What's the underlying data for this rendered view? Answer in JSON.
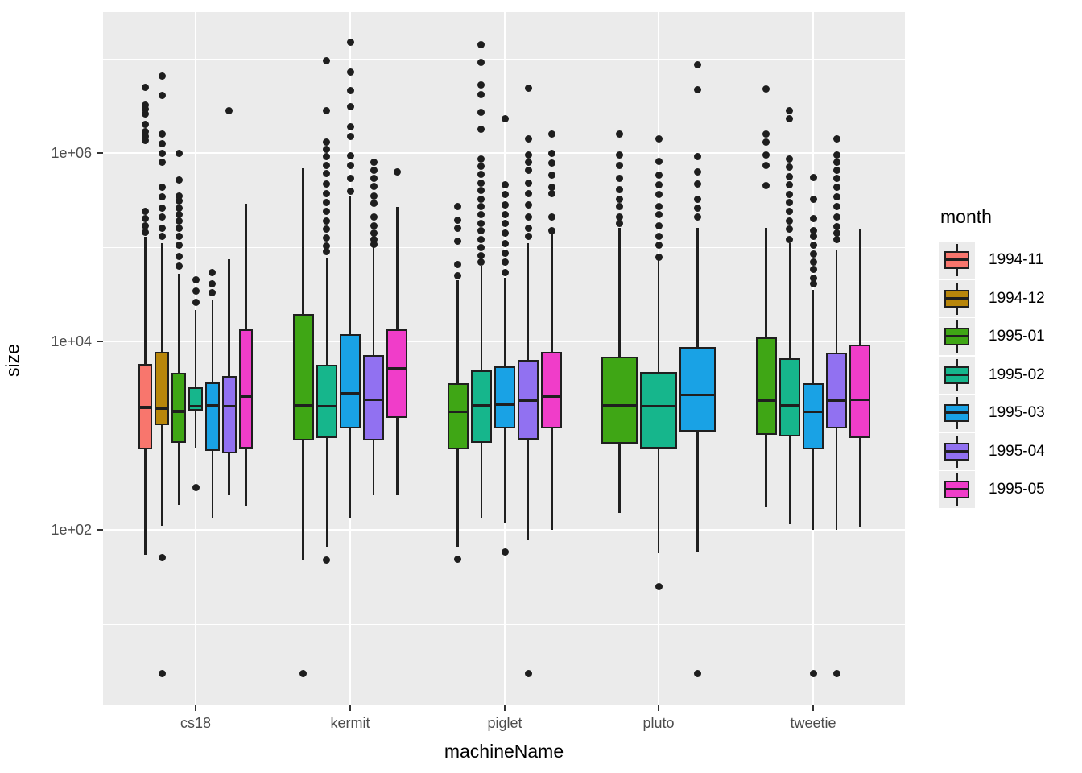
{
  "figure": {
    "x_title": "machineName",
    "y_title": "size",
    "background": "#ffffff",
    "panel_background": "#EBEBEB",
    "gridline_color": "#ffffff",
    "box_outline_color": "#1F1F1F",
    "outlier_color": "#1E1E1E"
  },
  "legend": {
    "title": "month",
    "entries": [
      {
        "label": "1994-11",
        "color": "#F8766D"
      },
      {
        "label": "1994-12",
        "color": "#B8860B"
      },
      {
        "label": "1995-01",
        "color": "#3FA615"
      },
      {
        "label": "1995-02",
        "color": "#16B68C"
      },
      {
        "label": "1995-03",
        "color": "#19A2E5"
      },
      {
        "label": "1995-04",
        "color": "#9171F1"
      },
      {
        "label": "1995-05",
        "color": "#F03DC9"
      }
    ]
  },
  "axes": {
    "y": {
      "label": "size",
      "scale": "log10",
      "major_ticks": [
        {
          "label": "1e+06",
          "value": 1000000
        },
        {
          "label": "1e+04",
          "value": 10000
        },
        {
          "label": "1e+02",
          "value": 100
        }
      ],
      "minor_tick_values": [
        10000000,
        100000,
        1000,
        10
      ]
    },
    "x": {
      "label": "machineName",
      "categories": [
        "cs18",
        "kermit",
        "piglet",
        "pluto",
        "tweetie"
      ]
    }
  },
  "chart_data": {
    "type": "boxplot",
    "y_scale": "log10",
    "xlabel": "machineName",
    "ylabel": "size",
    "legend_title": "month",
    "legend_position": "right",
    "grid": true,
    "machines": [
      {
        "name": "cs18",
        "boxes": [
          {
            "month": "1994-11",
            "lo": 54,
            "q1": 715,
            "med": 2000,
            "q3": 5750,
            "hi": 130000,
            "outliers": [
              5000000,
              3200000,
              2900000,
              2600000,
              2000000,
              1700000,
              1500000,
              1350000,
              240000,
              200000,
              170000,
              145000
            ]
          },
          {
            "month": "1994-12",
            "lo": 110,
            "q1": 1300,
            "med": 1950,
            "q3": 7800,
            "hi": 110000,
            "outliers": [
              6500000,
              4100000,
              1600000,
              1250000,
              1000000,
              790000,
              430000,
              340000,
              260000,
              210000,
              160000,
              130000,
              51,
              3
            ]
          },
          {
            "month": "1995-01",
            "lo": 185,
            "q1": 830,
            "med": 1800,
            "q3": 4650,
            "hi": 52000,
            "outliers": [
              1000000,
              520000,
              350000,
              310000,
              260000,
              220000,
              190000,
              160000,
              130000,
              105000,
              80000,
              63000
            ]
          },
          {
            "month": "1995-02",
            "lo": 750,
            "q1": 1850,
            "med": 2050,
            "q3": 3250,
            "hi": 21500,
            "outliers": [
              45000,
              34000,
              26000,
              280
            ]
          },
          {
            "month": "1995-03",
            "lo": 135,
            "q1": 690,
            "med": 2100,
            "q3": 3650,
            "hi": 28000,
            "outliers": [
              54000,
              41000,
              33000
            ]
          },
          {
            "month": "1995-04",
            "lo": 235,
            "q1": 650,
            "med": 2050,
            "q3": 4300,
            "hi": 74000,
            "outliers": [
              2800000
            ]
          },
          {
            "month": "1995-05",
            "lo": 180,
            "q1": 730,
            "med": 2600,
            "q3": 13500,
            "hi": 290000,
            "outliers": []
          }
        ]
      },
      {
        "name": "kermit",
        "boxes": [
          {
            "month": "1995-01",
            "lo": 48,
            "q1": 890,
            "med": 2100,
            "q3": 19500,
            "hi": 690000,
            "outliers": [
              3
            ]
          },
          {
            "month": "1995-02",
            "lo": 66,
            "q1": 950,
            "med": 2050,
            "q3": 5650,
            "hi": 78000,
            "outliers": [
              9500000,
              2800000,
              1300000,
              1100000,
              910000,
              740000,
              610000,
              470000,
              370000,
              300000,
              240000,
              190000,
              155000,
              126000,
              104000,
              89000,
              48
            ]
          },
          {
            "month": "1995-03",
            "lo": 135,
            "q1": 1200,
            "med": 2800,
            "q3": 12000,
            "hi": 350000,
            "outliers": [
              15000000,
              7200000,
              4600000,
              3100000,
              1900000,
              1500000,
              940000,
              740000,
              540000,
              390000
            ]
          },
          {
            "month": "1995-04",
            "lo": 235,
            "q1": 890,
            "med": 2400,
            "q3": 7200,
            "hi": 100000,
            "outliers": [
              790000,
              650000,
              540000,
              440000,
              350000,
              290000,
              210000,
              170000,
              140000,
              120000,
              107000
            ]
          },
          {
            "month": "1995-05",
            "lo": 235,
            "q1": 1550,
            "med": 5100,
            "q3": 13500,
            "hi": 270000,
            "outliers": [
              630000
            ]
          }
        ]
      },
      {
        "name": "piglet",
        "boxes": [
          {
            "month": "1995-01",
            "lo": 66,
            "q1": 715,
            "med": 1780,
            "q3": 3600,
            "hi": 45000,
            "outliers": [
              270000,
              195000,
              160000,
              115000,
              66000,
              50000,
              49
            ]
          },
          {
            "month": "1995-02",
            "lo": 135,
            "q1": 830,
            "med": 2100,
            "q3": 4900,
            "hi": 64000,
            "outliers": [
              14000000,
              9200000,
              5300000,
              4200000,
              2700000,
              1800000,
              870000,
              720000,
              590000,
              480000,
              400000,
              320000,
              270000,
              220000,
              180000,
              150000,
              120000,
              100000,
              82000,
              70000
            ]
          },
          {
            "month": "1995-03",
            "lo": 120,
            "q1": 1200,
            "med": 2150,
            "q3": 5400,
            "hi": 47000,
            "outliers": [
              2300000,
              460000,
              360000,
              280000,
              220000,
              180000,
              140000,
              110000,
              87000,
              69000,
              54000,
              58
            ]
          },
          {
            "month": "1995-04",
            "lo": 78,
            "q1": 910,
            "med": 2370,
            "q3": 6350,
            "hi": 110000,
            "outliers": [
              4900000,
              1400000,
              950000,
              790000,
              650000,
              480000,
              370000,
              280000,
              210000,
              160000,
              130000,
              3
            ]
          },
          {
            "month": "1995-05",
            "lo": 100,
            "q1": 1200,
            "med": 2600,
            "q3": 7800,
            "hi": 140000,
            "outliers": [
              1600000,
              1000000,
              780000,
              580000,
              430000,
              370000,
              210000,
              150000
            ]
          }
        ]
      },
      {
        "name": "pluto",
        "boxes": [
          {
            "month": "1995-01",
            "lo": 150,
            "q1": 820,
            "med": 2100,
            "q3": 6900,
            "hi": 160000,
            "outliers": [
              1600000,
              950000,
              740000,
              540000,
              410000,
              320000,
              270000,
              210000,
              180000
            ]
          },
          {
            "month": "1995-02",
            "lo": 56,
            "q1": 730,
            "med": 2050,
            "q3": 4700,
            "hi": 74000,
            "outliers": [
              1400000,
              820000,
              580000,
              460000,
              360000,
              270000,
              220000,
              170000,
              130000,
              105000,
              78000,
              25
            ]
          },
          {
            "month": "1995-03",
            "lo": 59,
            "q1": 1100,
            "med": 2700,
            "q3": 8700,
            "hi": 160000,
            "outliers": [
              8700000,
              4700000,
              920000,
              630000,
              470000,
              320000,
              260000,
              210000,
              3
            ]
          }
        ]
      },
      {
        "name": "tweetie",
        "boxes": [
          {
            "month": "1995-01",
            "lo": 175,
            "q1": 1020,
            "med": 2370,
            "q3": 11000,
            "hi": 160000,
            "outliers": [
              4800000,
              1600000,
              1300000,
              950000,
              740000,
              450000
            ]
          },
          {
            "month": "1995-02",
            "lo": 115,
            "q1": 980,
            "med": 2100,
            "q3": 6600,
            "hi": 110000,
            "outliers": [
              2800000,
              2300000,
              870000,
              710000,
              560000,
              460000,
              360000,
              300000,
              240000,
              190000,
              155000,
              120000
            ]
          },
          {
            "month": "1995-03",
            "lo": 100,
            "q1": 715,
            "med": 1780,
            "q3": 3600,
            "hi": 35000,
            "outliers": [
              550000,
              320000,
              200000,
              150000,
              130000,
              105000,
              85000,
              70000,
              58000,
              47000,
              41000,
              3
            ]
          },
          {
            "month": "1995-04",
            "lo": 100,
            "q1": 1200,
            "med": 2370,
            "q3": 7600,
            "hi": 94000,
            "outliers": [
              1400000,
              950000,
              790000,
              650000,
              540000,
              430000,
              340000,
              270000,
              210000,
              165000,
              140000,
              120000,
              3
            ]
          },
          {
            "month": "1995-05",
            "lo": 108,
            "q1": 950,
            "med": 2400,
            "q3": 9200,
            "hi": 155000,
            "outliers": []
          }
        ]
      }
    ]
  }
}
